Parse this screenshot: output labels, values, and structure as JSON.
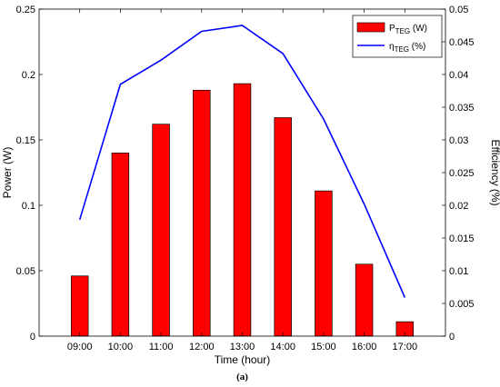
{
  "chart_data": {
    "type": "bar+line",
    "categories": [
      "09:00",
      "10:00",
      "11:00",
      "12:00",
      "13:00",
      "14:00",
      "15:00",
      "16:00",
      "17:00"
    ],
    "series": [
      {
        "name": "P",
        "name_sub": "TEG",
        "name_suffix": " (W)",
        "type": "bar",
        "axis": "left",
        "color": "#ff0000",
        "values": [
          0.046,
          0.14,
          0.162,
          0.188,
          0.193,
          0.167,
          0.111,
          0.055,
          0.011
        ]
      },
      {
        "name": "η",
        "name_sub": "TEG",
        "name_suffix": " (%)",
        "type": "line",
        "axis": "right",
        "color": "#0000ff",
        "values": [
          0.0178,
          0.0385,
          0.0422,
          0.0466,
          0.0475,
          0.0432,
          0.0332,
          0.0202,
          0.0059
        ]
      }
    ],
    "xlabel": "Time (hour)",
    "ylabel_left": "Power (W)",
    "ylabel_right": "Efficiency (%)",
    "ylim_left": [
      0,
      0.25
    ],
    "ylim_right": [
      0,
      0.05
    ],
    "yticks_left": [
      "0",
      "0.05",
      "0.1",
      "0.15",
      "0.2",
      "0.25"
    ],
    "yticks_right": [
      "0",
      "0.005",
      "0.01",
      "0.015",
      "0.02",
      "0.025",
      "0.03",
      "0.035",
      "0.04",
      "0.045",
      "0.05"
    ],
    "grid": false,
    "legend_position": "top-right",
    "caption": "(a)"
  }
}
